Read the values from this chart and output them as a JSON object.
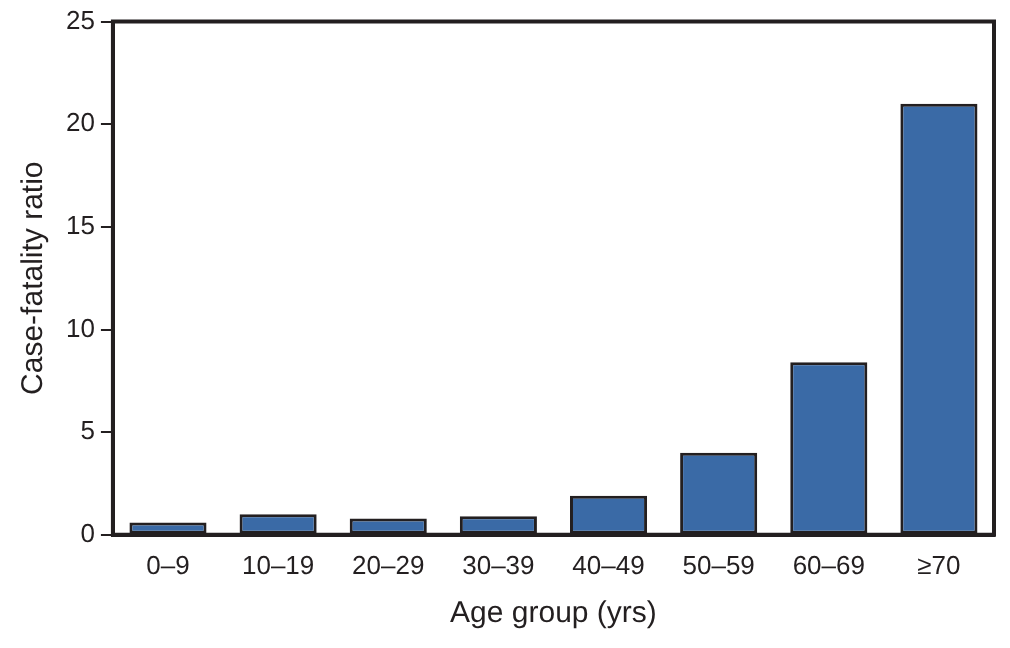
{
  "chart_data": {
    "type": "bar",
    "xlabel": "Age group (yrs)",
    "ylabel": "Case-fatality ratio",
    "categories": [
      "0–9",
      "10–19",
      "20–29",
      "30–39",
      "40–49",
      "50–59",
      "60–69",
      "≥70"
    ],
    "values": [
      0.6,
      1.0,
      0.8,
      0.9,
      1.9,
      4.0,
      8.4,
      21.0
    ],
    "color": "#3a6aa6",
    "ylim": [
      0,
      25
    ],
    "yticks": [
      0,
      5,
      10,
      15,
      20,
      25
    ],
    "grid": false,
    "legend": false
  }
}
